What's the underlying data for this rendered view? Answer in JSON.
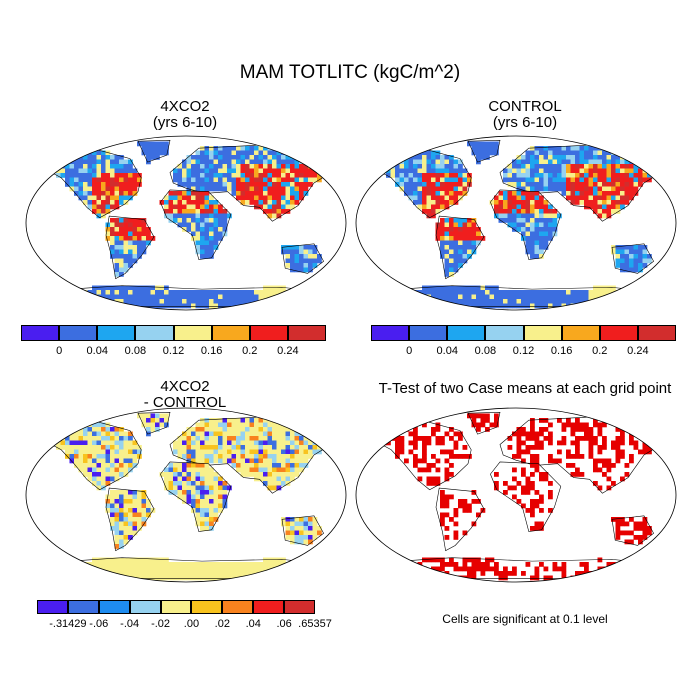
{
  "title": "MAM TOTLITC (kgC/m^2)",
  "panels": {
    "a": {
      "title_line1": "4XCO2",
      "title_line2": "(yrs 6-10)"
    },
    "b": {
      "title_line1": "CONTROL",
      "title_line2": "(yrs 6-10)"
    },
    "c": {
      "title_line1": "4XCO2",
      "title_line2": "- CONTROL"
    },
    "d": {
      "title_line1": "T-Test of two Case means at each grid point"
    }
  },
  "colorbar_abs": {
    "colors": [
      "#4a1ef0",
      "#3c6ee0",
      "#1ea6f0",
      "#96d2f0",
      "#f8f08c",
      "#f8a81e",
      "#f01e1e",
      "#d22d2d"
    ],
    "labels": [
      "0",
      "0.04",
      "0.08",
      "0.12",
      "0.16",
      "0.2",
      "0.24"
    ]
  },
  "colorbar_diff": {
    "colors": [
      "#4a1ef0",
      "#3c6ee0",
      "#1e8cf0",
      "#96d2f0",
      "#f8f08c",
      "#f8c31e",
      "#f8821e",
      "#f01e1e",
      "#d22d2d"
    ],
    "labels": [
      "-.31429",
      "-.06",
      "-.04",
      "-.02",
      ".00",
      ".02",
      ".04",
      ".06",
      ".65357"
    ]
  },
  "significance_note": "Cells are significant at 0.1 level",
  "significance_color": "#e60000"
}
